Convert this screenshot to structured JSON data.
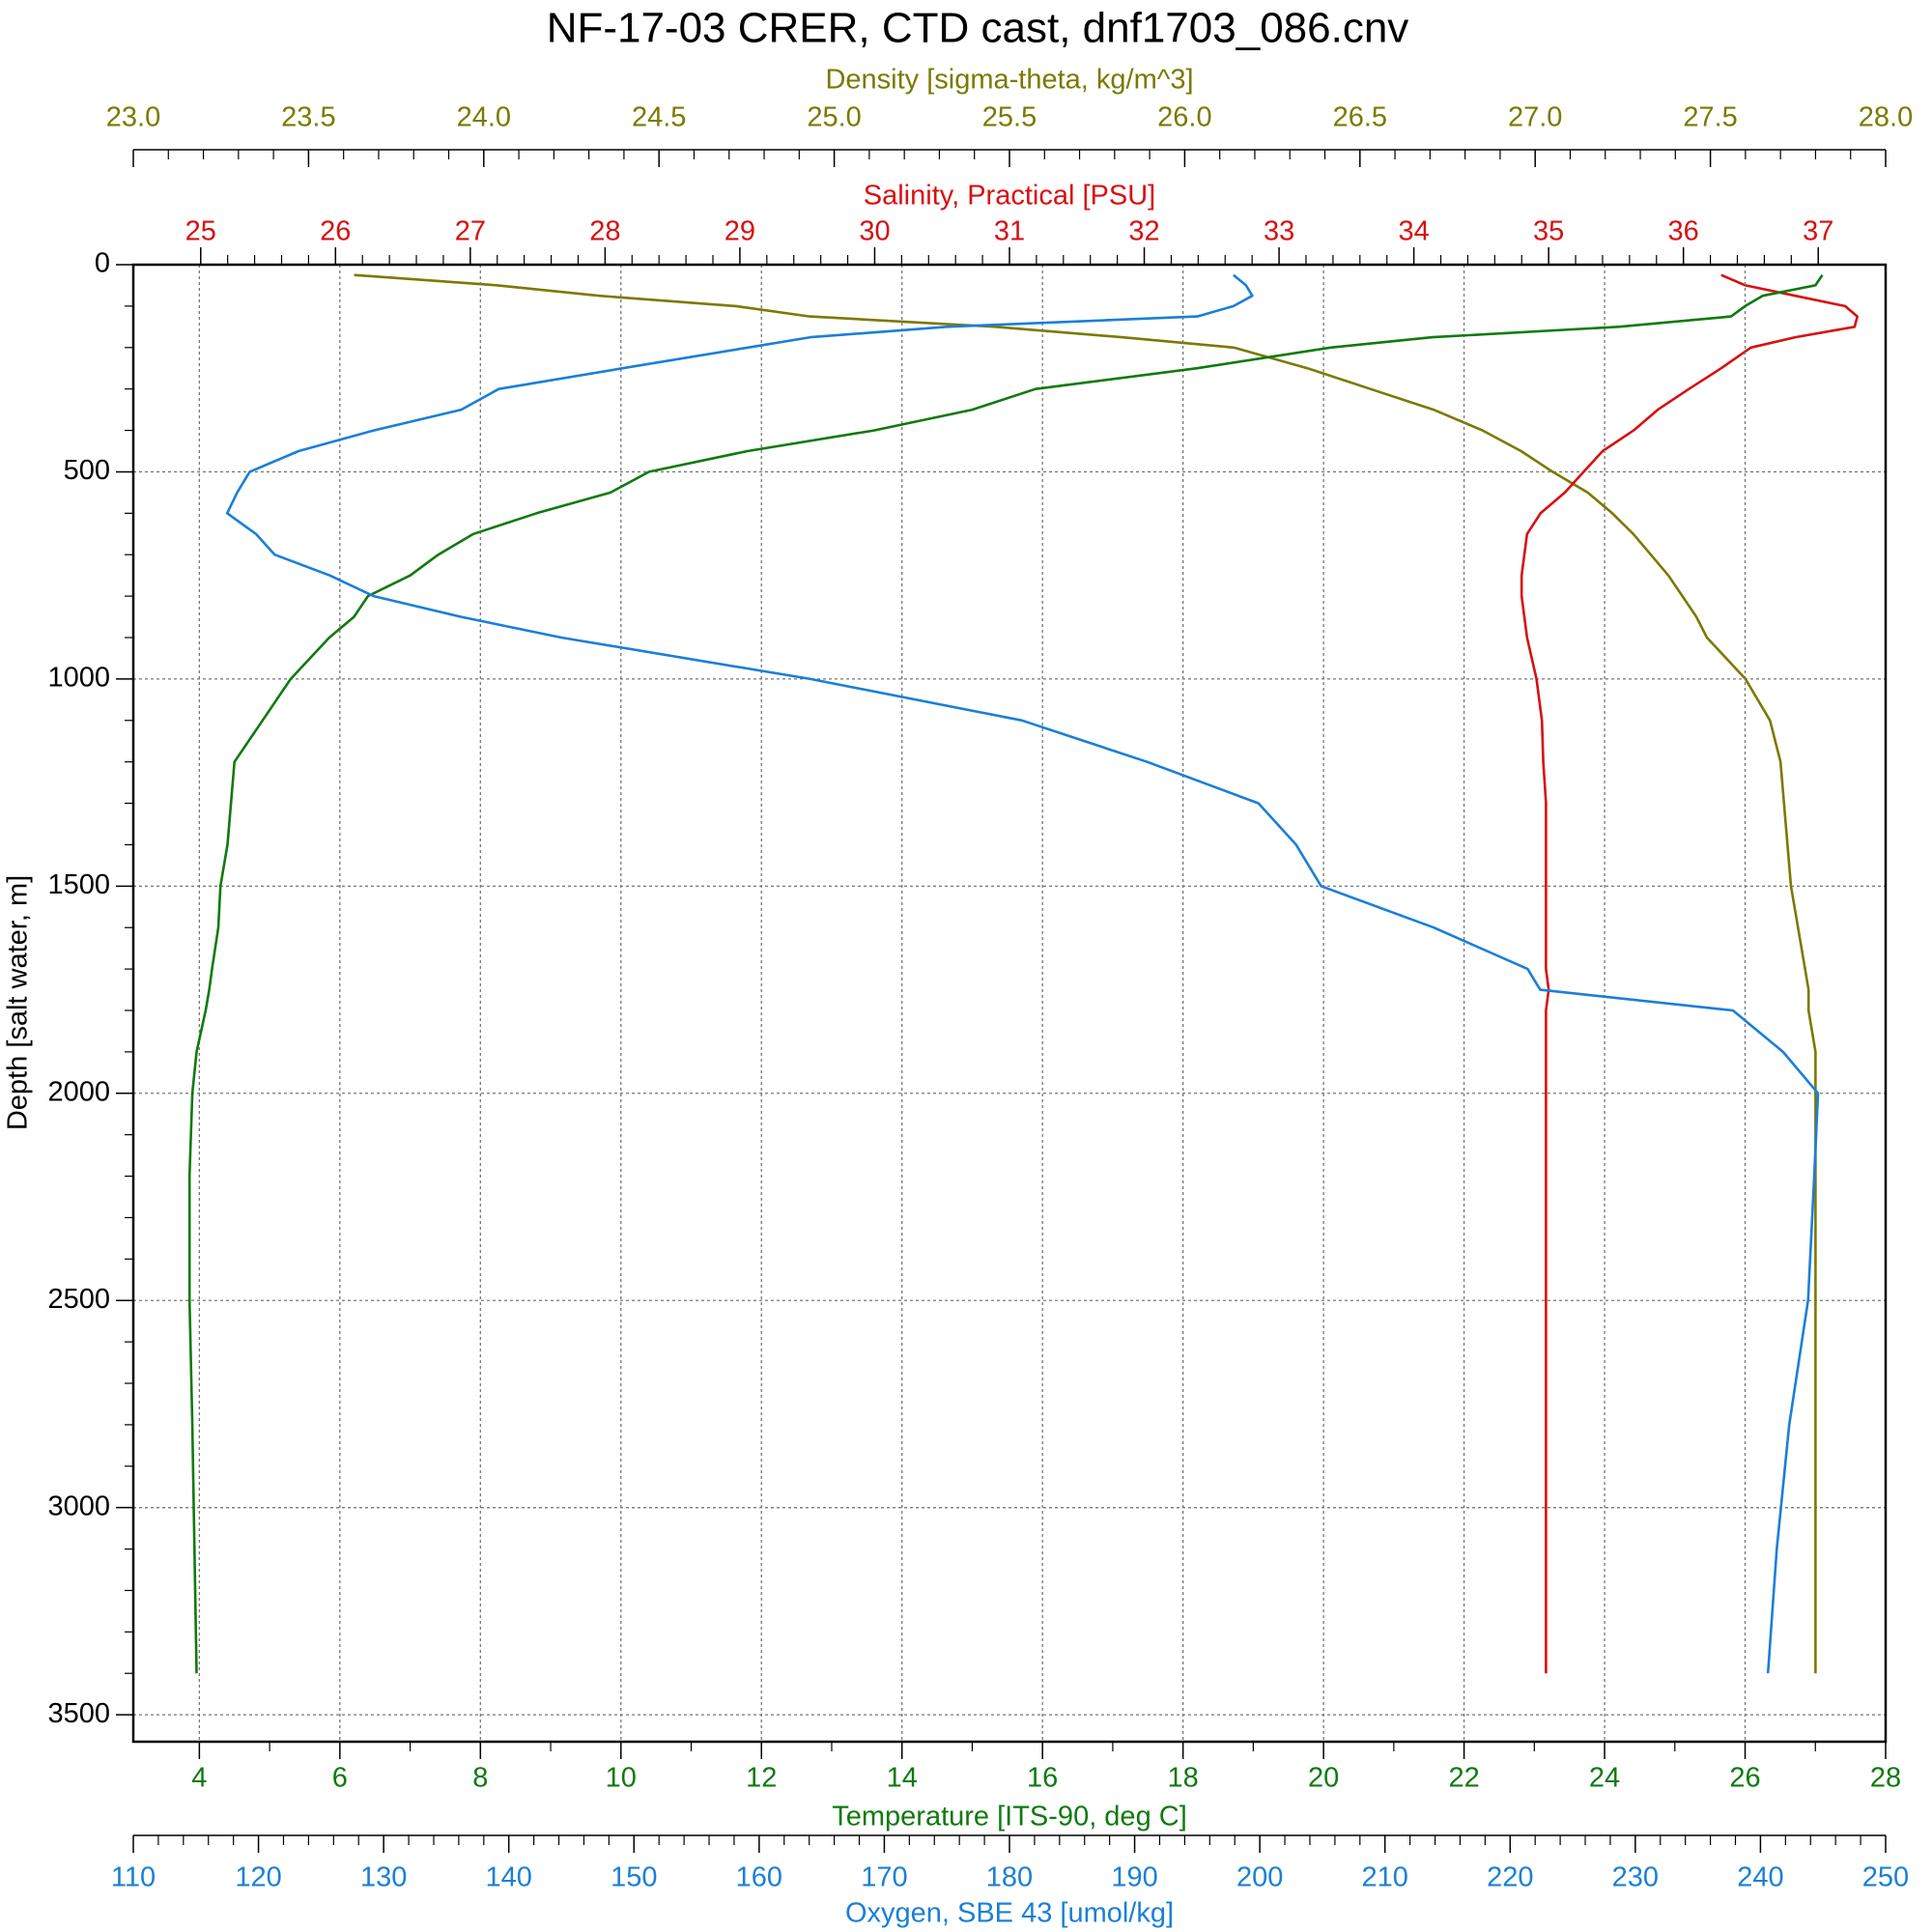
{
  "chart_data": {
    "type": "line",
    "title": "NF-17-03 CRER, CTD cast, dnf1703_086.cnv",
    "ylabel": "Depth [salt water, m]",
    "ylim": [
      0,
      3565
    ],
    "yticks": [
      0,
      500,
      1000,
      1500,
      2000,
      2500,
      3000,
      3500
    ],
    "grid": true,
    "depth": [
      25,
      50,
      75,
      100,
      125,
      150,
      175,
      200,
      250,
      300,
      350,
      400,
      450,
      500,
      550,
      600,
      650,
      700,
      750,
      800,
      850,
      900,
      1000,
      1100,
      1200,
      1300,
      1400,
      1500,
      1600,
      1700,
      1750,
      1800,
      1900,
      2000,
      2200,
      2500,
      2800,
      3100,
      3400
    ],
    "axes": [
      {
        "label": "Density [sigma-theta, kg/m^3]",
        "position": "top-outer",
        "color": "#7a7a00",
        "lim": [
          23,
          28
        ],
        "ticks": [
          {
            "value": 23,
            "label": "23.0"
          },
          {
            "value": 23.5,
            "label": "23.5"
          },
          {
            "value": 24,
            "label": "24.0"
          },
          {
            "value": 24.5,
            "label": "24.5"
          },
          {
            "value": 25,
            "label": "25.0"
          },
          {
            "value": 25.5,
            "label": "25.5"
          },
          {
            "value": 26,
            "label": "26.0"
          },
          {
            "value": 26.5,
            "label": "26.5"
          },
          {
            "value": 27,
            "label": "27.0"
          },
          {
            "value": 27.5,
            "label": "27.5"
          },
          {
            "value": 28,
            "label": "28.0"
          }
        ],
        "values": [
          23.63,
          24.04,
          24.33,
          24.72,
          24.93,
          25.46,
          25.82,
          26.14,
          26.35,
          26.53,
          26.71,
          26.85,
          26.96,
          27.05,
          27.15,
          27.22,
          27.28,
          27.33,
          27.38,
          27.42,
          27.46,
          27.49,
          27.6,
          27.67,
          27.7,
          27.71,
          27.72,
          27.73,
          27.75,
          27.77,
          27.78,
          27.78,
          27.8,
          27.8,
          27.8,
          27.8,
          27.8,
          27.8,
          27.8
        ]
      },
      {
        "label": "Salinity, Practical [PSU]",
        "position": "top-inner",
        "color": "#d81010",
        "lim": [
          24.5,
          37.5
        ],
        "ticks": [
          25,
          26,
          27,
          28,
          29,
          30,
          31,
          32,
          33,
          34,
          35,
          36,
          37
        ],
        "values": [
          36.28,
          36.46,
          36.83,
          37.2,
          37.29,
          37.27,
          36.83,
          36.5,
          36.28,
          36.04,
          35.81,
          35.63,
          35.4,
          35.26,
          35.12,
          34.94,
          34.84,
          34.82,
          34.8,
          34.8,
          34.82,
          34.84,
          34.91,
          34.95,
          34.96,
          34.98,
          34.98,
          34.98,
          34.98,
          34.98,
          35.0,
          34.98,
          34.98,
          34.98,
          34.98,
          34.98,
          34.98,
          34.98,
          34.98
        ]
      },
      {
        "label": "Temperature [ITS-90, deg C]",
        "position": "bottom-inner",
        "color": "#0f7a0f",
        "grid": true,
        "lim": [
          3.06,
          28
        ],
        "ticks": [
          4,
          6,
          8,
          10,
          12,
          14,
          16,
          18,
          20,
          22,
          24,
          26,
          28
        ],
        "values": [
          27.1,
          27.0,
          26.25,
          26.0,
          25.8,
          24.2,
          21.55,
          20.1,
          18.2,
          15.9,
          15.0,
          13.6,
          11.8,
          10.4,
          9.85,
          8.8,
          7.9,
          7.4,
          7.0,
          6.4,
          6.2,
          5.85,
          5.3,
          4.9,
          4.5,
          4.45,
          4.4,
          4.3,
          4.27,
          4.18,
          4.14,
          4.09,
          3.96,
          3.9,
          3.86,
          3.86,
          3.9,
          3.93,
          3.96
        ]
      },
      {
        "label": "Oxygen, SBE 43 [umol/kg]",
        "position": "bottom-outer",
        "color": "#1a7fd8",
        "lim": [
          110,
          250
        ],
        "ticks": [
          110,
          120,
          130,
          140,
          150,
          160,
          170,
          180,
          190,
          200,
          210,
          220,
          230,
          240,
          250
        ],
        "values": [
          197.9,
          198.9,
          199.4,
          197.9,
          195,
          175,
          164.1,
          159.1,
          149.1,
          139.2,
          136.2,
          129.2,
          123.2,
          119.3,
          118.3,
          117.5,
          119.8,
          121.3,
          125.7,
          129.2,
          136.2,
          144.2,
          164.1,
          181,
          191,
          199.9,
          202.9,
          204.9,
          213.9,
          221.4,
          222.4,
          237.8,
          241.8,
          244.6,
          244.3,
          243.8,
          242.3,
          241.3,
          240.6
        ]
      }
    ]
  }
}
